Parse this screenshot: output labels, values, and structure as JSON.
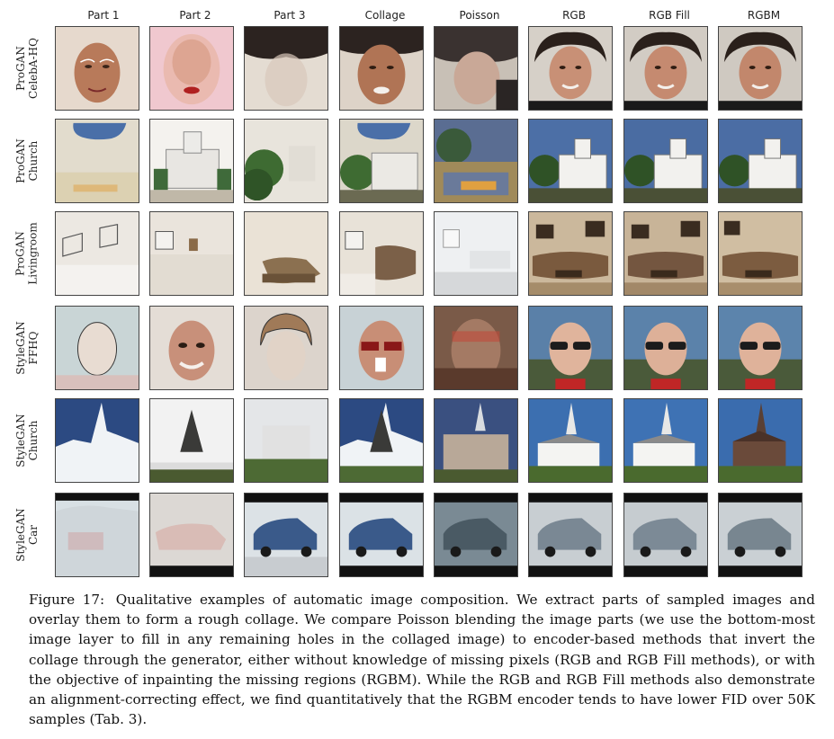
{
  "figure": {
    "columns": [
      "Part 1",
      "Part 2",
      "Part 3",
      "Collage",
      "Poisson",
      "RGB",
      "RGB Fill",
      "RGBM"
    ],
    "rows": [
      {
        "line1": "ProGAN",
        "line2": "CelebA-HQ"
      },
      {
        "line1": "ProGAN",
        "line2": "Church"
      },
      {
        "line1": "ProGAN",
        "line2": "Livingroom"
      },
      {
        "line1": "StyleGAN",
        "line2": "FFHQ"
      },
      {
        "line1": "StyleGAN",
        "line2": "Church"
      },
      {
        "line1": "StyleGAN",
        "line2": "Car"
      }
    ]
  },
  "caption": {
    "label": "Figure 17:",
    "text": "Qualitative examples of automatic image composition. We extract parts of sampled images and overlay them to form a rough collage. We compare Poisson blending the image parts (we use the bottom-most image layer to fill in any remaining holes in the collaged image) to encoder-based methods that invert the collage through the generator, either without knowledge of missing pixels (RGB and RGB Fill methods), or with the objective of inpainting the missing regions (RGBM). While the RGB and RGB Fill methods also demonstrate an alignment-correcting effect, we find quantitatively that the RGBM encoder tends to have lower FID over 50K samples (Tab. 3)."
  }
}
